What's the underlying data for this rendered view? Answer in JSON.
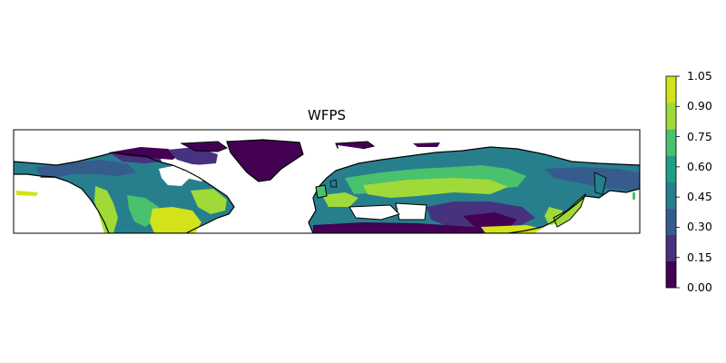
{
  "title": "WFPS",
  "chart_data": {
    "type": "heatmap",
    "title": "WFPS",
    "region": "Northern Hemisphere land (approx. 20N to 85N)",
    "colorbar": {
      "ticks": [
        "0.00",
        "0.15",
        "0.30",
        "0.45",
        "0.60",
        "0.75",
        "0.90",
        "1.05"
      ],
      "levels": [
        0.0,
        0.15,
        0.3,
        0.45,
        0.6,
        0.75,
        0.9,
        1.05
      ],
      "colors": [
        "#440154",
        "#46327e",
        "#365c8d",
        "#277f8e",
        "#1fa187",
        "#4ac16d",
        "#a0da39",
        "#d2e21b"
      ]
    }
  }
}
